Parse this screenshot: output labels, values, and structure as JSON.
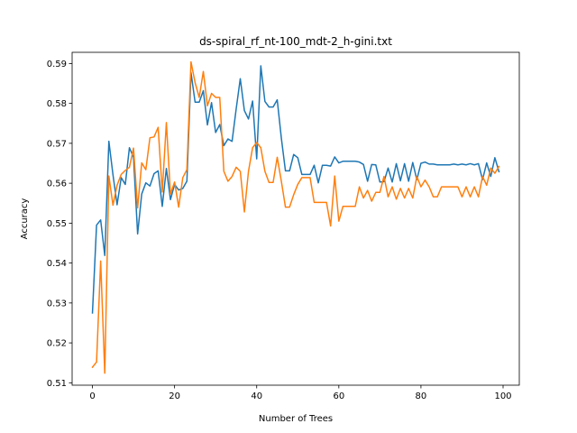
{
  "chart_data": {
    "type": "line",
    "title": "ds-spiral_rf_nt-100_mdt-2_h-gini.txt",
    "xlabel": "Number of Trees",
    "ylabel": "Accuracy",
    "xlim": [
      -4.95,
      103.95
    ],
    "ylim": [
      0.5094,
      0.5928
    ],
    "xticks": [
      0,
      20,
      40,
      60,
      80,
      100
    ],
    "yticks": [
      0.51,
      0.52,
      0.53,
      0.54,
      0.55,
      0.56,
      0.57,
      0.58,
      0.59
    ],
    "grid": false,
    "legend": null,
    "series": [
      {
        "color": "#1f77b4",
        "x": [
          0,
          1,
          2,
          3,
          4,
          5,
          6,
          7,
          8,
          9,
          10,
          11,
          12,
          13,
          14,
          15,
          16,
          17,
          18,
          19,
          20,
          21,
          22,
          23,
          24,
          25,
          26,
          27,
          28,
          29,
          30,
          31,
          32,
          33,
          34,
          35,
          36,
          37,
          38,
          39,
          40,
          41,
          42,
          43,
          44,
          45,
          46,
          47,
          48,
          49,
          50,
          51,
          52,
          53,
          54,
          55,
          56,
          57,
          58,
          59,
          60,
          61,
          62,
          63,
          64,
          65,
          66,
          67,
          68,
          69,
          70,
          71,
          72,
          73,
          74,
          75,
          76,
          77,
          78,
          79,
          80,
          81,
          82,
          83,
          84,
          85,
          86,
          87,
          88,
          89,
          90,
          91,
          92,
          93,
          94,
          95,
          96,
          97,
          98,
          99
        ],
        "values": [
          0.5275,
          0.5495,
          0.5508,
          0.5419,
          0.5705,
          0.5621,
          0.5546,
          0.5614,
          0.5597,
          0.5689,
          0.5665,
          0.5473,
          0.5573,
          0.5601,
          0.5593,
          0.5624,
          0.5631,
          0.5542,
          0.5637,
          0.5559,
          0.5597,
          0.5583,
          0.5587,
          0.5605,
          0.5877,
          0.5803,
          0.5803,
          0.5832,
          0.5746,
          0.5802,
          0.5727,
          0.5747,
          0.5694,
          0.5711,
          0.5705,
          0.5786,
          0.5862,
          0.5782,
          0.5761,
          0.5806,
          0.5661,
          0.5894,
          0.5805,
          0.5791,
          0.5791,
          0.5809,
          0.5713,
          0.5631,
          0.5631,
          0.5672,
          0.5664,
          0.5622,
          0.5622,
          0.5622,
          0.5645,
          0.5601,
          0.5645,
          0.5645,
          0.5643,
          0.5666,
          0.5651,
          0.5655,
          0.5655,
          0.5655,
          0.5655,
          0.5653,
          0.5647,
          0.5605,
          0.5647,
          0.5646,
          0.5603,
          0.5604,
          0.5638,
          0.5603,
          0.5649,
          0.5606,
          0.5649,
          0.5605,
          0.5652,
          0.5609,
          0.565,
          0.5653,
          0.5648,
          0.5648,
          0.5646,
          0.5646,
          0.5646,
          0.5646,
          0.5648,
          0.5646,
          0.5648,
          0.5646,
          0.5649,
          0.5646,
          0.5649,
          0.5609,
          0.5651,
          0.5617,
          0.5664,
          0.5629
        ]
      },
      {
        "color": "#ff7f0e",
        "x": [
          0,
          1,
          2,
          3,
          4,
          5,
          6,
          7,
          8,
          9,
          10,
          11,
          12,
          13,
          14,
          15,
          16,
          17,
          18,
          19,
          20,
          21,
          22,
          23,
          24,
          25,
          26,
          27,
          28,
          29,
          30,
          31,
          32,
          33,
          34,
          35,
          36,
          37,
          38,
          39,
          40,
          41,
          42,
          43,
          44,
          45,
          46,
          47,
          48,
          49,
          50,
          51,
          52,
          53,
          54,
          55,
          56,
          57,
          58,
          59,
          60,
          61,
          62,
          63,
          64,
          65,
          66,
          67,
          68,
          69,
          70,
          71,
          72,
          73,
          74,
          75,
          76,
          77,
          78,
          79,
          80,
          81,
          82,
          83,
          84,
          85,
          86,
          87,
          88,
          89,
          90,
          91,
          92,
          93,
          94,
          95,
          96,
          97,
          98,
          99
        ],
        "values": [
          0.5139,
          0.5152,
          0.5405,
          0.5124,
          0.5618,
          0.5545,
          0.5595,
          0.5622,
          0.5632,
          0.564,
          0.5688,
          0.5538,
          0.5651,
          0.5634,
          0.5714,
          0.5716,
          0.574,
          0.5578,
          0.5752,
          0.5573,
          0.5603,
          0.554,
          0.5614,
          0.5634,
          0.5904,
          0.5852,
          0.5815,
          0.588,
          0.5794,
          0.5825,
          0.5815,
          0.5815,
          0.563,
          0.5605,
          0.5617,
          0.564,
          0.563,
          0.5528,
          0.563,
          0.5689,
          0.5702,
          0.5689,
          0.563,
          0.5602,
          0.5602,
          0.5665,
          0.5605,
          0.554,
          0.554,
          0.5571,
          0.5597,
          0.5614,
          0.5614,
          0.5614,
          0.5552,
          0.5552,
          0.5552,
          0.5552,
          0.5493,
          0.5618,
          0.5505,
          0.5542,
          0.5542,
          0.5542,
          0.5542,
          0.5591,
          0.5563,
          0.5582,
          0.5555,
          0.5577,
          0.5577,
          0.5617,
          0.5566,
          0.5591,
          0.556,
          0.5587,
          0.5563,
          0.5587,
          0.5563,
          0.5617,
          0.5591,
          0.5608,
          0.5591,
          0.5566,
          0.5566,
          0.5591,
          0.5591,
          0.5591,
          0.5591,
          0.5591,
          0.5566,
          0.5591,
          0.5566,
          0.5591,
          0.5566,
          0.5617,
          0.5595,
          0.5638,
          0.5625,
          0.5642
        ]
      }
    ]
  }
}
